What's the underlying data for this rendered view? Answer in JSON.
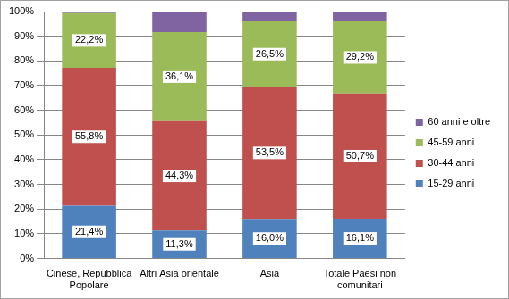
{
  "chart_data": {
    "type": "bar",
    "stacked": true,
    "grid": true,
    "legend": "right",
    "categories": [
      "Cinese, Repubblica Popolare",
      "Altri Asia orientale",
      "Asia",
      "Totale Paesi non comunitari"
    ],
    "ylim": [
      0,
      100
    ],
    "yticks": [
      {
        "value": 0,
        "label": "0%"
      },
      {
        "value": 10,
        "label": "10%"
      },
      {
        "value": 20,
        "label": "20%"
      },
      {
        "value": 30,
        "label": "30%"
      },
      {
        "value": 40,
        "label": "40%"
      },
      {
        "value": 50,
        "label": "50%"
      },
      {
        "value": 60,
        "label": "60%"
      },
      {
        "value": 70,
        "label": "70%"
      },
      {
        "value": 80,
        "label": "80%"
      },
      {
        "value": 90,
        "label": "90%"
      },
      {
        "value": 100,
        "label": "100%"
      }
    ],
    "series": [
      {
        "name": "15-29 anni",
        "color": "#4f81bd",
        "values": [
          21.4,
          11.3,
          16.0,
          16.1
        ],
        "data_labels": true,
        "value_labels": [
          "21,4%",
          "11,3%",
          "16,0%",
          "16,1%"
        ]
      },
      {
        "name": "30-44 anni",
        "color": "#c0504d",
        "values": [
          55.8,
          44.3,
          53.5,
          50.7
        ],
        "data_labels": true,
        "value_labels": [
          "55,8%",
          "44,3%",
          "53,5%",
          "50,7%"
        ]
      },
      {
        "name": "45-59 anni",
        "color": "#9bbb59",
        "values": [
          22.2,
          36.1,
          26.5,
          29.2
        ],
        "data_labels": true,
        "value_labels": [
          "22,2%",
          "36,1%",
          "26,5%",
          "29,2%"
        ]
      },
      {
        "name": "60 anni e oltre",
        "color": "#8064a2",
        "values": [
          0.6,
          8.3,
          4.0,
          3.9
        ],
        "data_labels": false
      }
    ]
  }
}
